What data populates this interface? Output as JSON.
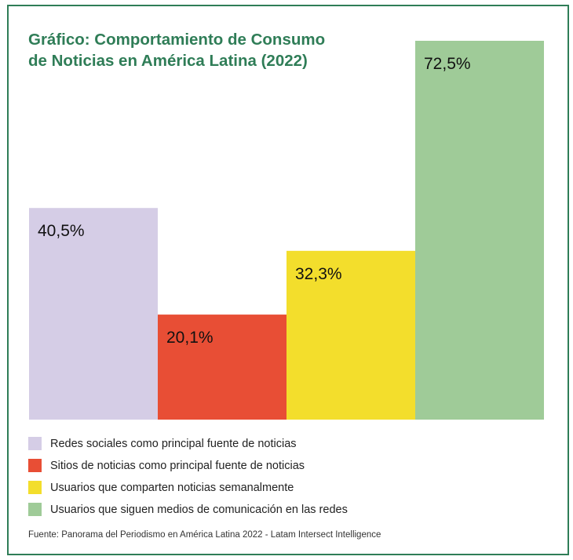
{
  "chart_data": {
    "type": "bar",
    "title_lines": [
      "Gráfico: Comportamiento de Consumo",
      "de Noticias en América Latina (2022)"
    ],
    "categories": [
      "Redes sociales como principal fuente de noticias",
      "Sitios de noticias como principal fuente de noticias",
      "Usuarios que comparten noticias semanalmente",
      "Usuarios que siguen medios de comunicación en las redes"
    ],
    "values": [
      40.5,
      20.1,
      32.3,
      72.5
    ],
    "value_labels": [
      "40,5%",
      "20,1%",
      "32,3%",
      "72,5%"
    ],
    "colors": [
      "#d5cde6",
      "#e84e35",
      "#f3de2c",
      "#9fcb98"
    ],
    "ylim": [
      0,
      72.5
    ],
    "grid": false,
    "legend_position": "bottom"
  },
  "source": "Fuente: Panorama del Periodismo en América Latina 2022 - Latam Intersect Intelligence"
}
